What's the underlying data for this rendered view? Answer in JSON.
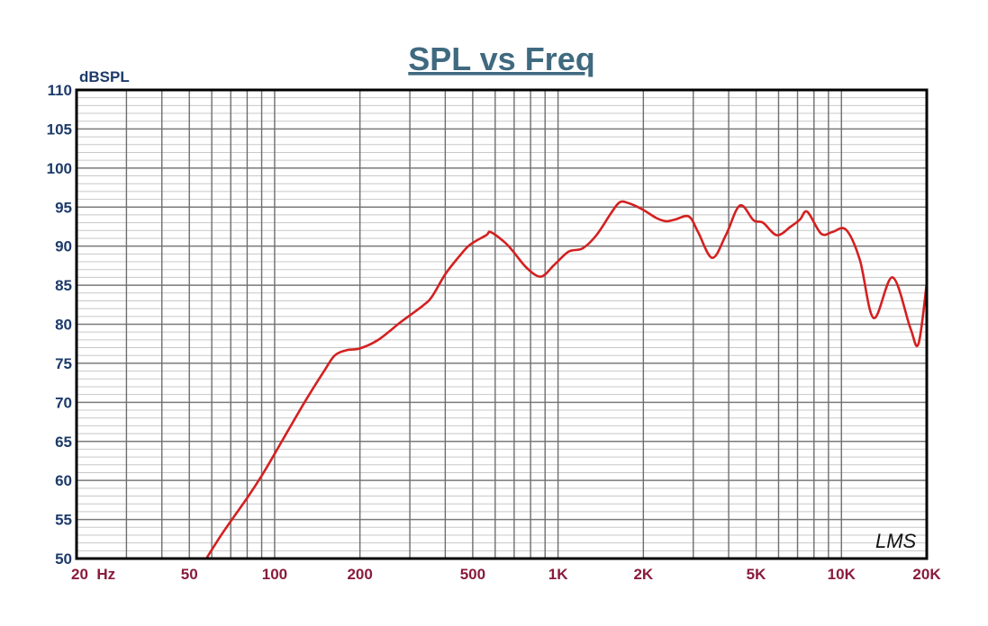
{
  "chart_data": {
    "type": "line",
    "title": "SPL vs Freq",
    "ylabel": "dBSPL",
    "xlabel": "",
    "x_unit": "Hz",
    "xscale": "log",
    "xlim": [
      20,
      20000
    ],
    "ylim": [
      50,
      110
    ],
    "grid": true,
    "x_ticks": [
      20,
      50,
      100,
      200,
      500,
      1000,
      2000,
      5000,
      10000,
      20000
    ],
    "x_tick_labels": [
      "20  Hz",
      "50",
      "100",
      "200",
      "500",
      "1K",
      "2K",
      "5K",
      "10K",
      "20K"
    ],
    "y_ticks": [
      110,
      105,
      100,
      95,
      90,
      85,
      80,
      75,
      70,
      65,
      60,
      55,
      50
    ],
    "y_tick_labels": [
      "110",
      "105",
      "100",
      "95",
      "90",
      "85",
      "80",
      "75",
      "70",
      "65",
      "60",
      "55",
      "50"
    ],
    "watermark": "LMS",
    "series": [
      {
        "color": "#d42020",
        "x": [
          57.4,
          64.5,
          72,
          80.5,
          90,
          100,
          112,
          129,
          150,
          163,
          180,
          200,
          232,
          279,
          334,
          360,
          400,
          448,
          490,
          558,
          578,
          648,
          695,
          776,
          870,
          970,
          1089,
          1219,
          1366,
          1530,
          1648,
          1775,
          1985,
          2223,
          2397,
          2585,
          2893,
          3120,
          3500,
          3910,
          4380,
          4900,
          5290,
          5920,
          6620,
          7140,
          7580,
          8480,
          9280,
          10380,
          11620,
          13000,
          15150,
          17500,
          18700,
          20000
        ],
        "y": [
          50,
          52.9,
          55.4,
          57.9,
          60.6,
          63.4,
          66.5,
          70.3,
          74.1,
          76,
          76.7,
          76.9,
          78,
          80.3,
          82.4,
          83.6,
          86.4,
          88.7,
          90.2,
          91.4,
          91.8,
          90.5,
          89.3,
          87.2,
          86.1,
          87.6,
          89.3,
          89.7,
          91.4,
          94.1,
          95.6,
          95.5,
          94.7,
          93.6,
          93.2,
          93.4,
          93.8,
          91.8,
          88.5,
          91.4,
          95.2,
          93.3,
          93,
          91.4,
          92.5,
          93.4,
          94.4,
          91.6,
          91.8,
          92.1,
          88.2,
          80.8,
          86,
          79.5,
          77.5,
          85.3
        ]
      }
    ]
  }
}
